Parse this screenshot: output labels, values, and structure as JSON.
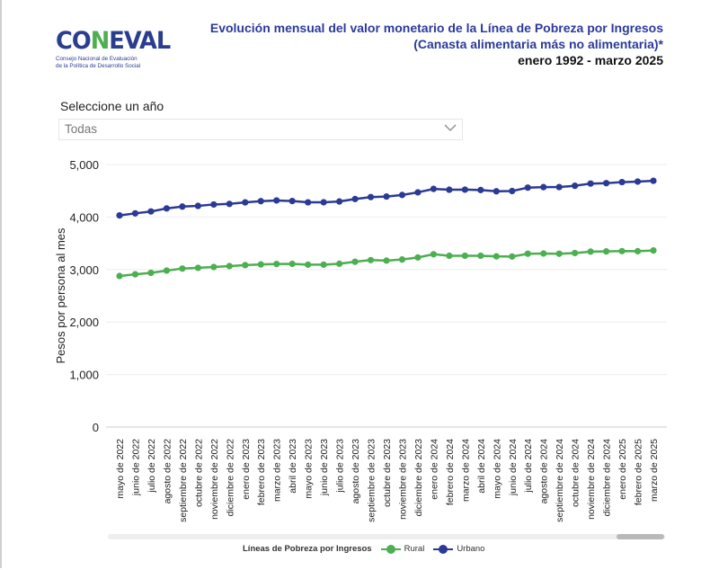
{
  "logo": {
    "text": "CONEVAL",
    "subtitle_line1": "Consejo Nacional de Evaluación",
    "subtitle_line2": "de la Política de Desarrollo Social"
  },
  "header": {
    "title_line1": "Evolución mensual del valor monetario de la Línea de Pobreza por Ingresos",
    "title_line2": "(Canasta alimentaria más no alimentaria)*",
    "period": "enero 1992 - marzo 2025"
  },
  "filter": {
    "label": "Seleccione un año",
    "selected": "Todas",
    "icon": "chevron-down-icon"
  },
  "legend": {
    "title": "Líneas de Pobreza por Ingresos"
  },
  "chart_data": {
    "type": "line",
    "ylabel": "Pesos por persona al mes",
    "ylim": [
      0,
      5000
    ],
    "yticks": [
      "0",
      "1,000",
      "2,000",
      "3,000",
      "4,000",
      "5,000"
    ],
    "grid": true,
    "legend_position": "bottom",
    "categories": [
      "mayo de 2022",
      "junio de 2022",
      "julio de 2022",
      "agosto de 2022",
      "septiembre de 2022",
      "octubre de 2022",
      "noviembre de 2022",
      "diciembre de 2022",
      "enero de 2023",
      "febrero de 2023",
      "marzo de 2023",
      "abril de 2023",
      "mayo de 2023",
      "junio de 2023",
      "julio de 2023",
      "agosto de 2023",
      "septiembre de 2023",
      "octubre de 2023",
      "noviembre de 2023",
      "diciembre de 2023",
      "enero de 2024",
      "febrero de 2024",
      "marzo de 2024",
      "abril de 2024",
      "mayo de 2024",
      "junio de 2024",
      "julio de 2024",
      "agosto de 2024",
      "septiembre de 2024",
      "octubre de 2024",
      "noviembre de 2024",
      "diciembre de 2024",
      "enero de 2025",
      "febrero de 2025",
      "marzo de 2025"
    ],
    "series": [
      {
        "name": "Rural",
        "color": "#4caf50",
        "values": [
          2877,
          2909,
          2937,
          2980,
          3019,
          3032,
          3048,
          3066,
          3084,
          3097,
          3106,
          3108,
          3093,
          3093,
          3110,
          3148,
          3180,
          3170,
          3191,
          3230,
          3291,
          3262,
          3263,
          3263,
          3251,
          3248,
          3301,
          3305,
          3301,
          3314,
          3341,
          3345,
          3351,
          3350,
          3363
        ]
      },
      {
        "name": "Urbano",
        "color": "#2b3a94",
        "values": [
          4031,
          4070,
          4106,
          4164,
          4199,
          4212,
          4239,
          4250,
          4279,
          4302,
          4316,
          4305,
          4280,
          4281,
          4296,
          4343,
          4380,
          4390,
          4420,
          4470,
          4536,
          4520,
          4522,
          4514,
          4490,
          4495,
          4560,
          4570,
          4571,
          4595,
          4637,
          4645,
          4665,
          4675,
          4690
        ]
      }
    ]
  }
}
